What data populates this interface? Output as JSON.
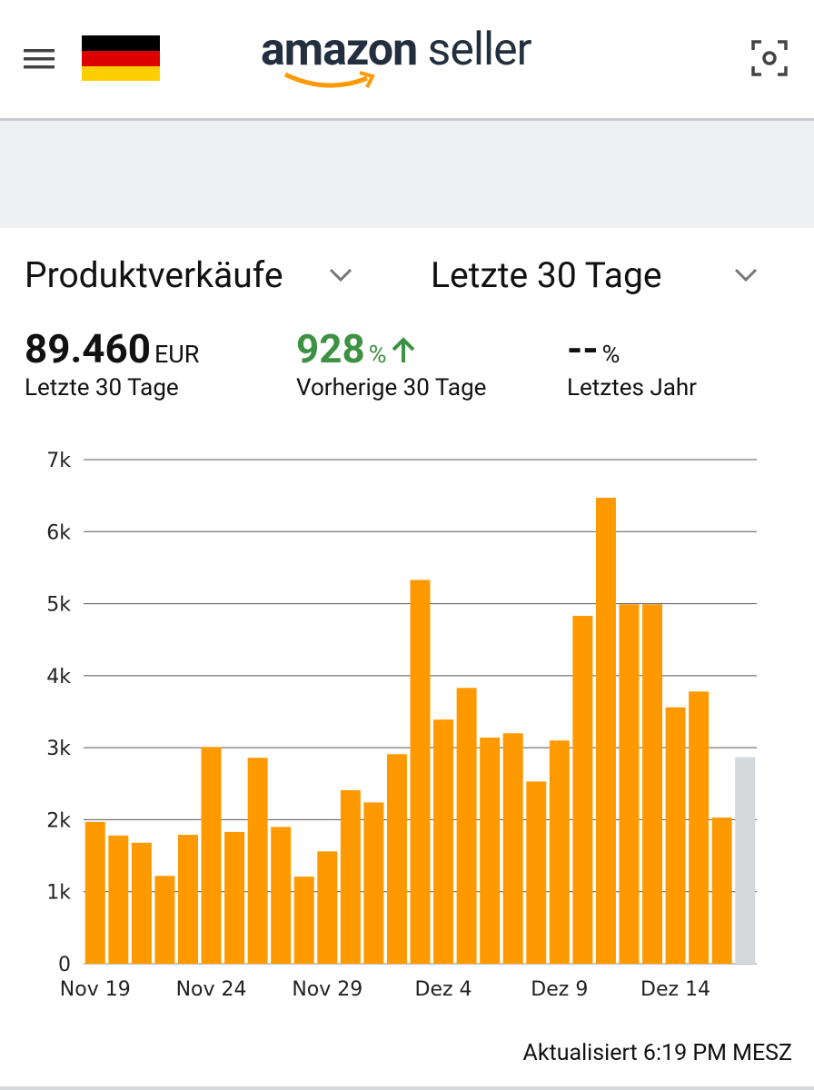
{
  "header": {
    "logo_brand": "amazon",
    "logo_product": "seller"
  },
  "selectors": {
    "metric": "Produktverkäufe",
    "period": "Letzte 30 Tage"
  },
  "summary": [
    {
      "value": "89.460",
      "unit": "EUR",
      "label": "Letzte 30 Tage"
    },
    {
      "value": "928",
      "unit": "%",
      "label": "Vorherige 30 Tage"
    },
    {
      "value": "--",
      "unit": "%",
      "label": "Letztes Jahr"
    }
  ],
  "chart_data": {
    "type": "bar",
    "categories": [
      "Nov 19",
      null,
      null,
      null,
      null,
      "Nov 24",
      null,
      null,
      null,
      null,
      "Nov 29",
      null,
      null,
      null,
      null,
      "Dez 4",
      null,
      null,
      null,
      null,
      "Dez 9",
      null,
      null,
      null,
      null,
      "Dez 14",
      null,
      null,
      null
    ],
    "values": [
      1970,
      1780,
      1680,
      1220,
      1790,
      3010,
      1830,
      2860,
      1900,
      1210,
      1560,
      2410,
      2240,
      2910,
      5330,
      3390,
      3830,
      3140,
      3200,
      2530,
      3100,
      4830,
      6470,
      4990,
      4990,
      3560,
      3780,
      2030,
      2870
    ],
    "colors": [
      "#ff9900",
      "#ff9900",
      "#ff9900",
      "#ff9900",
      "#ff9900",
      "#ff9900",
      "#ff9900",
      "#ff9900",
      "#ff9900",
      "#ff9900",
      "#ff9900",
      "#ff9900",
      "#ff9900",
      "#ff9900",
      "#ff9900",
      "#ff9900",
      "#ff9900",
      "#ff9900",
      "#ff9900",
      "#ff9900",
      "#ff9900",
      "#ff9900",
      "#ff9900",
      "#ff9900",
      "#ff9900",
      "#ff9900",
      "#ff9900",
      "#ff9900",
      "#d5d8da"
    ],
    "ylim": [
      0,
      7000
    ],
    "yticks": [
      0,
      {
        "value": 1000,
        "label": "1k"
      },
      {
        "value": 2000,
        "label": "2k"
      },
      {
        "value": 3000,
        "label": "3k"
      },
      {
        "value": 4000,
        "label": "4k"
      },
      {
        "value": 5000,
        "label": "5k"
      },
      {
        "value": 6000,
        "label": "6k"
      },
      {
        "value": 7000,
        "label": "7k"
      }
    ],
    "grid": true
  },
  "footer": {
    "updated": "Aktualisiert 6:19 PM MESZ"
  }
}
